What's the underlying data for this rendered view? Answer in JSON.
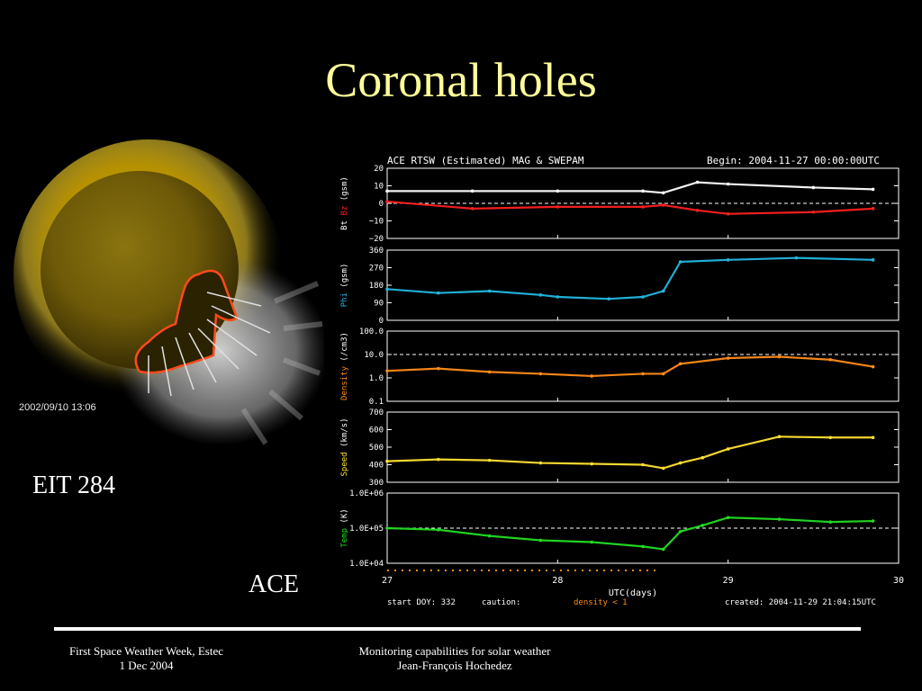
{
  "slide": {
    "title": "Coronal holes",
    "footer_left_line1": "First Space Weather Week, Estec",
    "footer_left_line2": "1 Dec 2004",
    "footer_mid_line1": "Monitoring capabilities for solar weather",
    "footer_mid_line2": "Jean-François Hochedez"
  },
  "eit": {
    "label": "EIT 284",
    "timestamp": "2002/09/10 13:06"
  },
  "ace": {
    "label": "ACE"
  },
  "chart_data": {
    "type": "line",
    "title": "ACE RTSW (Estimated) MAG & SWEPAM",
    "begin": "Begin: 2004-11-27 00:00:00UTC",
    "xlabel": "UTC(days)",
    "x_ticks": [
      "27",
      "28",
      "29",
      "30"
    ],
    "footer_start": "start DOY: 332",
    "footer_caution": "caution:",
    "footer_density": "density < 1",
    "footer_created": "created: 2004-11-29 21:04:15UTC",
    "panels": [
      {
        "ylabel_a": "Bt",
        "ylabel_b": "Bz",
        "ylabel_c": "(gsm)",
        "ylim": [
          -20,
          20
        ],
        "yticks": [
          "20",
          "10",
          "0",
          "−10",
          "−20"
        ],
        "dashed_level": 0,
        "series": [
          {
            "name": "Bt",
            "color": "#ffffff",
            "x": [
              27.0,
              27.5,
              28.0,
              28.5,
              28.62,
              28.82,
              29.0,
              29.5,
              29.85
            ],
            "y": [
              7,
              7,
              7,
              7,
              6,
              12,
              11,
              9,
              8
            ]
          },
          {
            "name": "Bz",
            "color": "#ff2020",
            "x": [
              27.0,
              27.5,
              28.0,
              28.5,
              28.62,
              28.82,
              29.0,
              29.5,
              29.85
            ],
            "y": [
              1,
              -3,
              -2,
              -2,
              -1,
              -4,
              -6,
              -5,
              -3
            ]
          }
        ]
      },
      {
        "ylabel_a": "Phi",
        "ylabel_c": "(gsm)",
        "ylim": [
          0,
          360
        ],
        "yticks": [
          "360",
          "270",
          "180",
          "90",
          "0"
        ],
        "series": [
          {
            "name": "Phi",
            "color": "#22b8e0",
            "x": [
              27.0,
              27.3,
              27.6,
              27.9,
              28.0,
              28.3,
              28.5,
              28.62,
              28.72,
              29.0,
              29.4,
              29.85
            ],
            "y": [
              160,
              140,
              150,
              130,
              120,
              110,
              120,
              150,
              300,
              310,
              320,
              310
            ]
          }
        ]
      },
      {
        "ylabel_a": "Density",
        "ylabel_c": "(/cm3)",
        "ylim_log": [
          0.1,
          100
        ],
        "yticks": [
          "100.0",
          "10.0",
          "1.0",
          "0.1"
        ],
        "dashed_level": 10,
        "series": [
          {
            "name": "Density",
            "color": "#ff8c1a",
            "x": [
              27.0,
              27.3,
              27.6,
              27.9,
              28.2,
              28.5,
              28.62,
              28.72,
              29.0,
              29.3,
              29.6,
              29.85
            ],
            "y": [
              2.0,
              2.5,
              1.8,
              1.5,
              1.2,
              1.5,
              1.5,
              4,
              7,
              8,
              6,
              3
            ]
          }
        ]
      },
      {
        "ylabel_a": "Speed",
        "ylabel_c": "(km/s)",
        "ylim": [
          300,
          700
        ],
        "yticks": [
          "700",
          "600",
          "500",
          "400",
          "300"
        ],
        "series": [
          {
            "name": "Speed",
            "color": "#ffe033",
            "x": [
              27.0,
              27.3,
              27.6,
              27.9,
              28.2,
              28.5,
              28.62,
              28.72,
              28.85,
              29.0,
              29.3,
              29.6,
              29.85
            ],
            "y": [
              420,
              430,
              425,
              410,
              405,
              400,
              380,
              410,
              440,
              490,
              560,
              555,
              555
            ]
          }
        ]
      },
      {
        "ylabel_a": "Temp",
        "ylabel_c": "(K)",
        "ylim_log": [
          10000,
          1000000
        ],
        "yticks": [
          "1.0E+06",
          "1.0E+05",
          "1.0E+04"
        ],
        "dashed_level": 100000,
        "series": [
          {
            "name": "Temp",
            "color": "#22dd22",
            "x": [
              27.0,
              27.3,
              27.6,
              27.9,
              28.2,
              28.5,
              28.62,
              28.72,
              28.85,
              29.0,
              29.3,
              29.6,
              29.85
            ],
            "y": [
              100000,
              90000,
              60000,
              45000,
              40000,
              30000,
              25000,
              80000,
              120000,
              200000,
              180000,
              150000,
              160000
            ]
          }
        ]
      }
    ]
  }
}
